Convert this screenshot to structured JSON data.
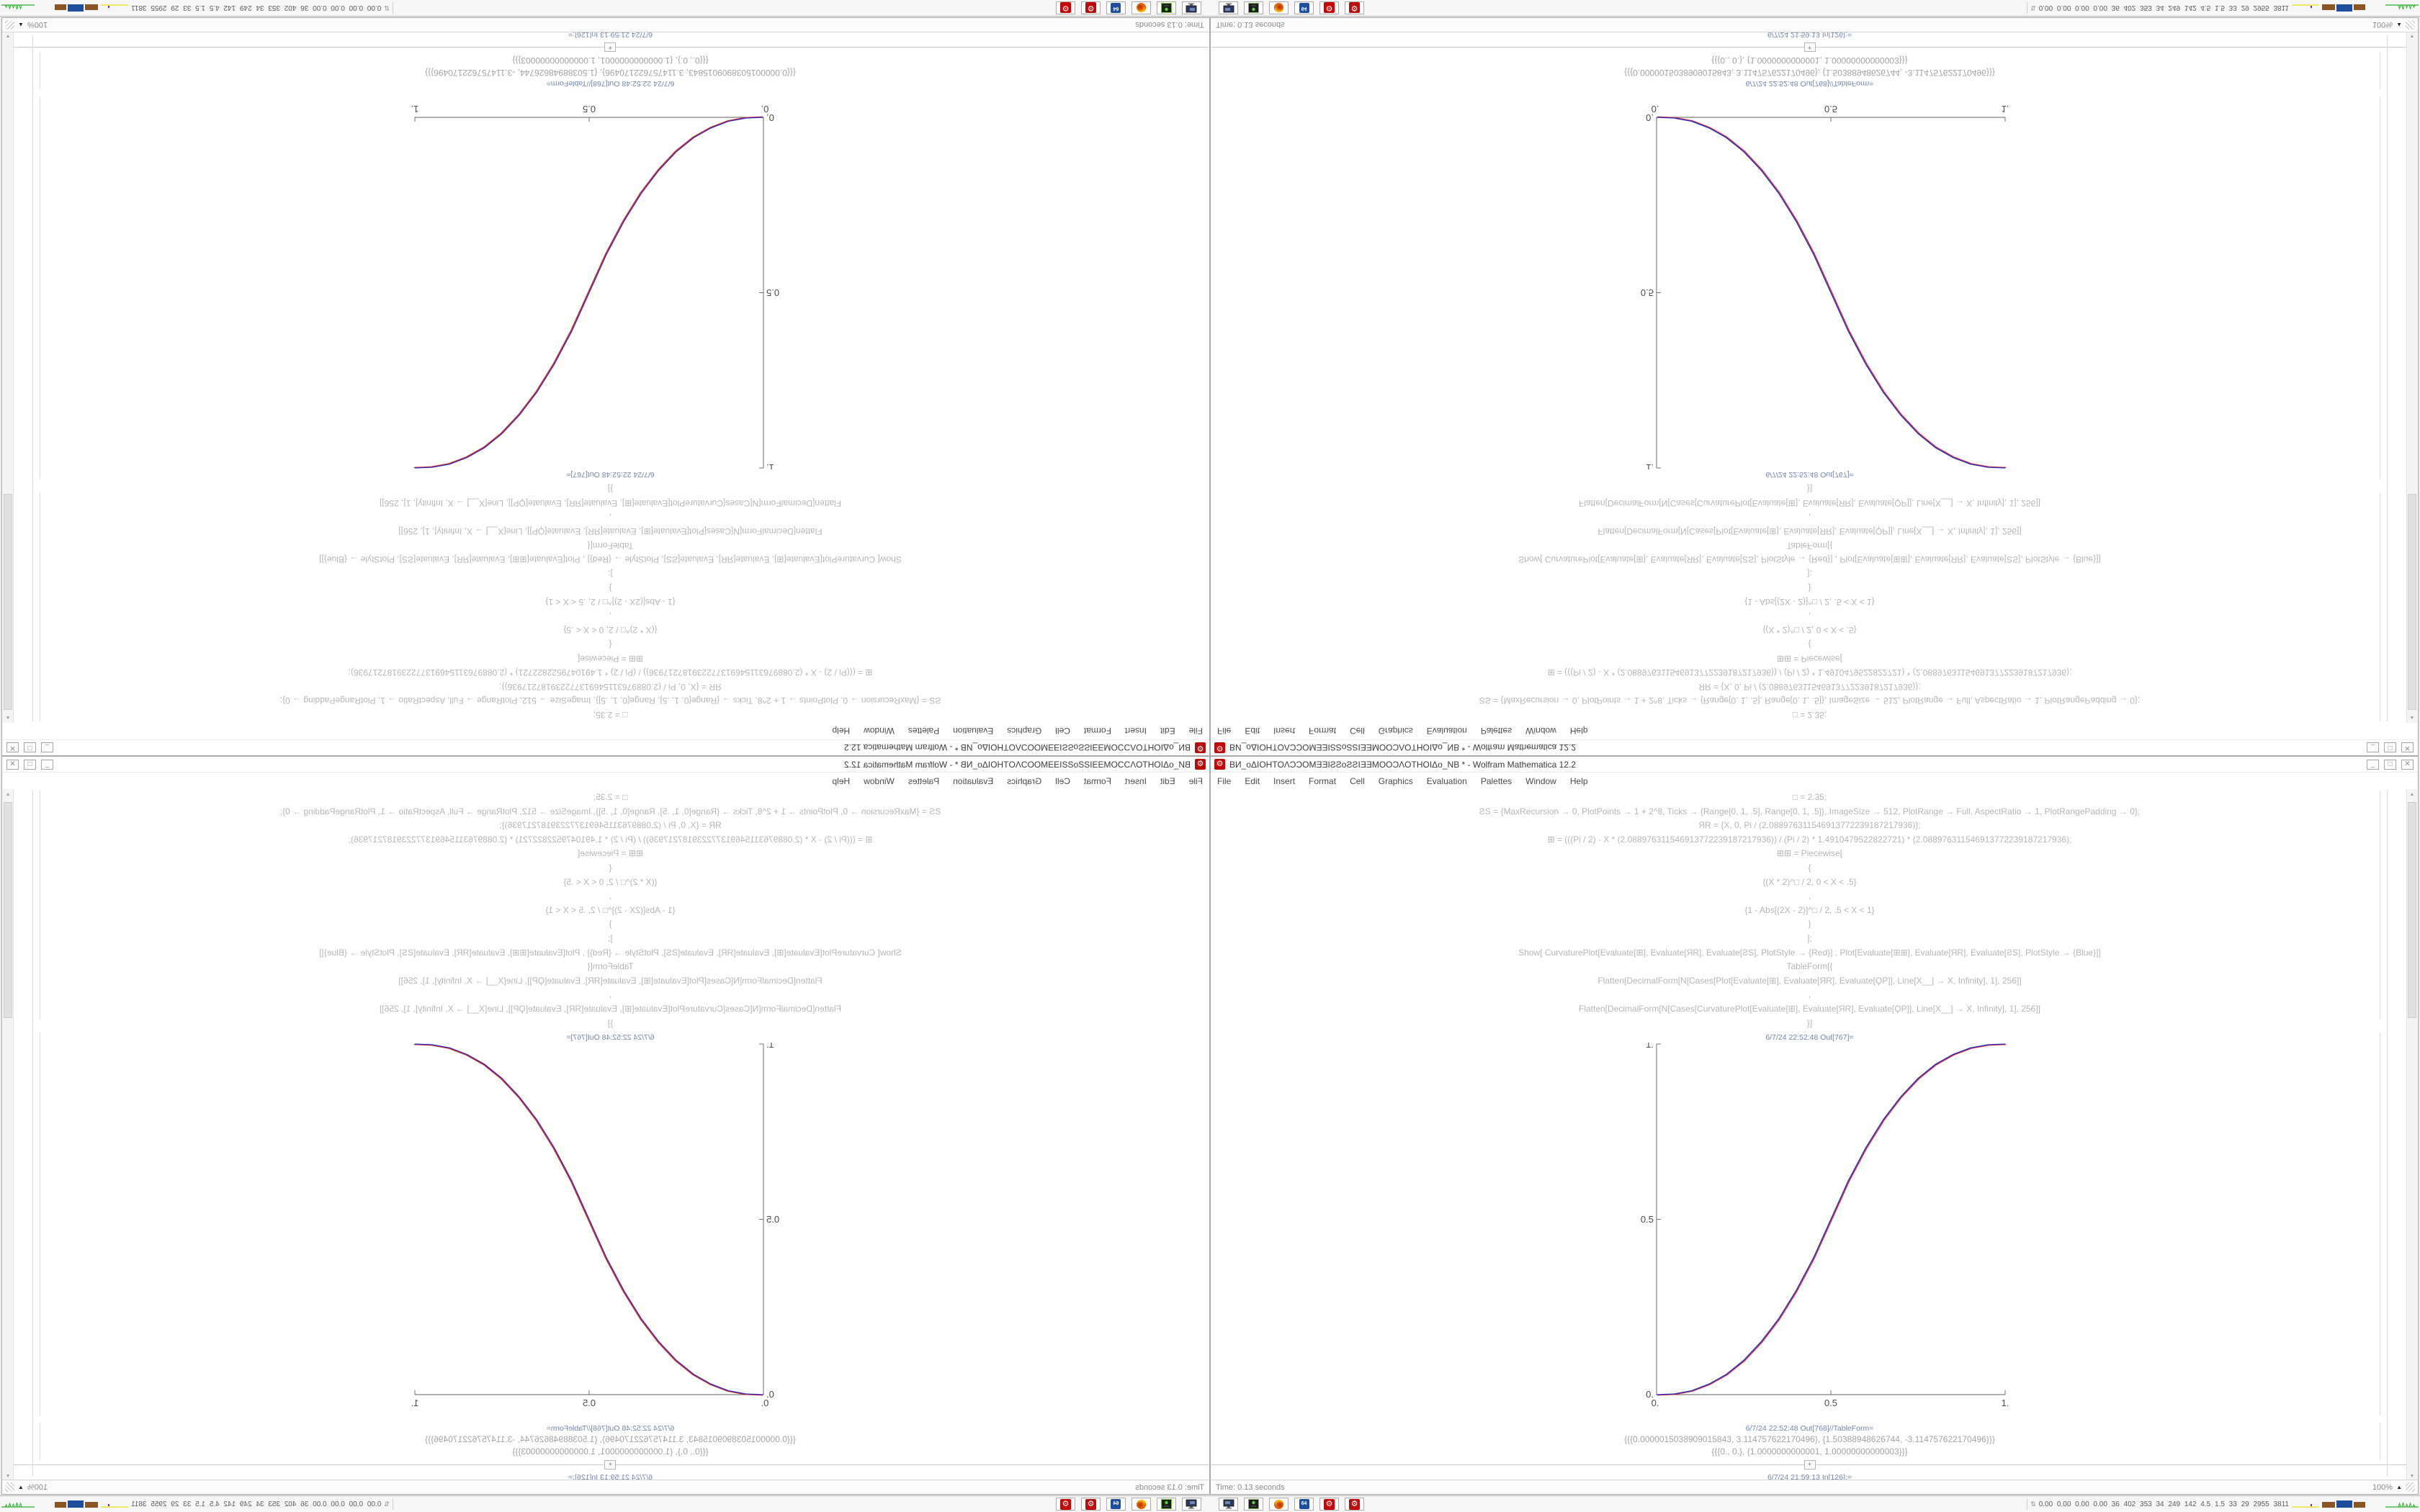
{
  "window": {
    "title": "ВИ_oΔIOHTOΛƆƆOMƎƎIƧƧoƧƧIƎƎMOOƆΛOTHOIΔo_NB * - Wolfram Mathematica 12.2",
    "app_icon_glyph": "⚙",
    "menu": [
      "File",
      "Edit",
      "Insert",
      "Format",
      "Cell",
      "Graphics",
      "Evaluation",
      "Palettes",
      "Window",
      "Help"
    ],
    "controls": {
      "minimize": "_",
      "maximize": "□",
      "close": "✕"
    },
    "status_left": "Time: 0.13 seconds",
    "magnification": "100%",
    "magnification_arrow": "▲",
    "scrollbar_up": "▲",
    "scrollbar_down": "▼"
  },
  "notebook": {
    "input_lines": [
      "□ = 2.35;",
      "ƧS = {MaxRecursion → 0, PlotPoints → 1 + 2^8, Ticks → {Range[0, 1, .5], Range[0, 1, .5]}, ImageSize → 512, PlotRange → Full, AspectRatio → 1, PlotRangePadding → 0};",
      "ЯR = {X, 0, Pi / (2.088976311546913772239187217936)};",
      "⊞ = (((Pi / 2) - X * (2.088976311546913772239187217936)) / (Pi / 2) * 1.4910479522822721) * (2.088976311546913772239187217936);",
      "⊞⊞ = Piecewise[",
      "{",
      "{(X * 2)^□ / 2, 0 < X < .5}",
      ",",
      "{1 - Abs[(2X - 2)]^□ / 2, .5 < X < 1}",
      "}",
      "];",
      "Show[  CurvaturePlot[Evaluate[⊞], Evaluate[ЯR], Evaluate[ƧS], PlotStyle → {Red}]  ,  Plot[Evaluate[⊞⊞], Evaluate[ЯR], Evaluate[ƧS], PlotStyle → {Blue}]]",
      "TableForm[{",
      "Flatten[DecimalForm[N[Cases[Plot[Evaluate[⊞], Evaluate[ЯR], Evaluate[ϘP]], Line[X__] → X, Infinity], 1], 256]]",
      ",",
      "Flatten[DecimalForm[N[Cases[CurvaturePlot[Evaluate[⊞], Evaluate[ЯR], Evaluate[ϘP]], Line[X__] → X, Infinity], 1], 256]]",
      "}]"
    ],
    "out_label_plot": "6/7/24 22:52:48 Out[767]=",
    "out_label_table": "6/7/24 22:52:48 Out[768]//TableForm=",
    "in_label_next": "6/7/24 21:59:13 In[126]:=",
    "result_line_1": "{{{0.0000015038909015843, 3.114757622170496}, {1.50388948626744, -3.114757622170496}}}",
    "result_line_2": "{{{0., 0.}, {1.0000000000001, 1.00000000000003}}}",
    "insert_plus": "+"
  },
  "chart_data": {
    "type": "line",
    "title": "",
    "xlabel": "",
    "ylabel": "",
    "xlim": [
      0,
      1
    ],
    "ylim": [
      0,
      1
    ],
    "x_tick_labels": [
      "0.",
      "0.5",
      "1."
    ],
    "y_tick_labels": [
      "0.",
      "0.5",
      "1."
    ],
    "grid": false,
    "legend": "none",
    "series": [
      {
        "name": "CurvaturePlot[⊞] (Red)",
        "color": "#d42a2a",
        "points": [
          [
            0,
            0
          ],
          [
            0.05,
            0.002
          ],
          [
            0.1,
            0.011
          ],
          [
            0.15,
            0.03
          ],
          [
            0.2,
            0.058
          ],
          [
            0.25,
            0.098
          ],
          [
            0.3,
            0.151
          ],
          [
            0.35,
            0.216
          ],
          [
            0.4,
            0.296
          ],
          [
            0.45,
            0.39
          ],
          [
            0.5,
            0.5
          ],
          [
            0.55,
            0.61
          ],
          [
            0.6,
            0.704
          ],
          [
            0.65,
            0.784
          ],
          [
            0.7,
            0.849
          ],
          [
            0.75,
            0.902
          ],
          [
            0.8,
            0.942
          ],
          [
            0.85,
            0.97
          ],
          [
            0.9,
            0.989
          ],
          [
            0.95,
            0.998
          ],
          [
            1,
            1
          ]
        ]
      },
      {
        "name": "Plot[⊞⊞] (Blue)",
        "color": "#2a2ac8",
        "points": [
          [
            0,
            0
          ],
          [
            0.05,
            0.002
          ],
          [
            0.1,
            0.011
          ],
          [
            0.15,
            0.03
          ],
          [
            0.2,
            0.058
          ],
          [
            0.25,
            0.098
          ],
          [
            0.3,
            0.151
          ],
          [
            0.35,
            0.216
          ],
          [
            0.4,
            0.296
          ],
          [
            0.45,
            0.39
          ],
          [
            0.5,
            0.5
          ],
          [
            0.55,
            0.61
          ],
          [
            0.6,
            0.704
          ],
          [
            0.65,
            0.784
          ],
          [
            0.7,
            0.849
          ],
          [
            0.75,
            0.902
          ],
          [
            0.8,
            0.942
          ],
          [
            0.85,
            0.97
          ],
          [
            0.9,
            0.989
          ],
          [
            0.95,
            0.998
          ],
          [
            1,
            1
          ]
        ]
      }
    ]
  },
  "taskbar": {
    "toggle_glyph": "⇅",
    "stats": "0.00 0.00 0.00 0.00  36  402  353  34  249  142  4.5  1.5  33  29  2955 3811",
    "floppy_label": "64",
    "gear_glyph": "⚙"
  },
  "colors": {
    "accent_red": "#c00a0a",
    "curve_red": "#d42a2a",
    "curve_blue": "#2a2ac8",
    "cell_label_blue": "#7386a8",
    "code_gray": "#b5b5b5"
  }
}
